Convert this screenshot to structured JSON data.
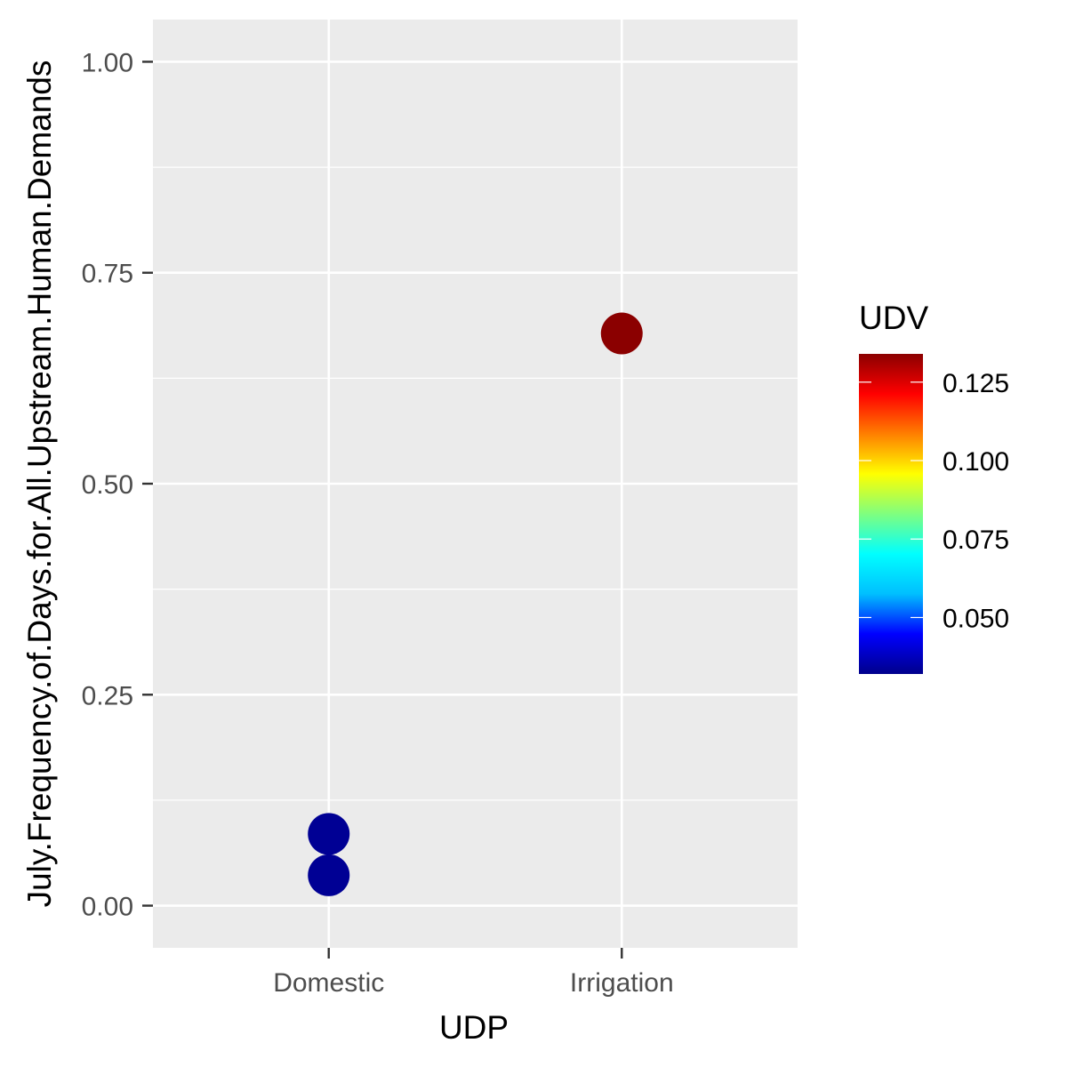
{
  "chart_data": {
    "type": "scatter",
    "xlabel": "UDP",
    "ylabel": "July.Frequency.of.Days.for.All.Upstream.Human.Demands",
    "categories": [
      "Domestic",
      "Irrigation"
    ],
    "ylim": [
      -0.05,
      1.05
    ],
    "y_ticks": [
      0.0,
      0.25,
      0.5,
      0.75,
      1.0
    ],
    "y_tick_labels": [
      "0.00",
      "0.25",
      "0.50",
      "0.75",
      "1.00"
    ],
    "grid": true,
    "points": [
      {
        "x": "Domestic",
        "y": 0.036,
        "udv": 0.033
      },
      {
        "x": "Domestic",
        "y": 0.085,
        "udv": 0.033
      },
      {
        "x": "Irrigation",
        "y": 0.678,
        "udv": 0.134
      }
    ],
    "legend": {
      "title": "UDV",
      "position": "right",
      "range": [
        0.032,
        0.134
      ],
      "ticks": [
        0.05,
        0.075,
        0.1,
        0.125
      ],
      "tick_labels": [
        "0.050",
        "0.075",
        "0.100",
        "0.125"
      ],
      "colors": [
        "#00008B",
        "#0000FF",
        "#00BFFF",
        "#00FFFF",
        "#7FFF7F",
        "#FFFF00",
        "#FF7F00",
        "#FF0000",
        "#8B0000"
      ]
    }
  }
}
